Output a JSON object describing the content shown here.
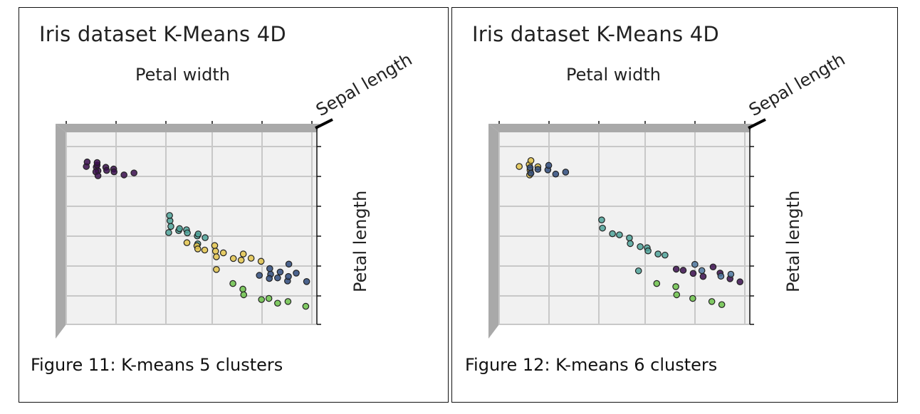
{
  "figures": [
    {
      "caption": "Figure 11: K-means 5 clusters",
      "chart_data": {
        "type": "scatter",
        "title": "Iris dataset K-Means 4D",
        "xlabel": "Petal width",
        "ylabel": "Petal length",
        "zlabel": "Sepal length",
        "xlim": [
          0.1,
          2.5
        ],
        "ylim": [
          1.0,
          6.9
        ],
        "grid": true,
        "series": [
          {
            "color": "#3b0f4f",
            "x": [
              0.1,
              0.2,
              0.2,
              0.2,
              0.2,
              0.3,
              0.3,
              0.4,
              0.1,
              0.2,
              0.2,
              0.4,
              0.5,
              0.6
            ],
            "y": [
              1.4,
              1.4,
              1.3,
              1.5,
              1.6,
              1.4,
              1.5,
              1.5,
              1.2,
              1.2,
              1.7,
              1.6,
              1.7,
              1.6
            ]
          },
          {
            "color": "#4fa39a",
            "x": [
              1.0,
              1.0,
              1.0,
              1.1,
              1.1,
              1.2,
              1.2,
              1.3,
              1.3,
              1.4,
              1.0,
              1.3
            ],
            "y": [
              3.5,
              3.7,
              4.0,
              3.9,
              3.8,
              3.9,
              4.0,
              4.1,
              4.0,
              4.2,
              3.3,
              4.4
            ]
          },
          {
            "color": "#e3c44c",
            "x": [
              1.2,
              1.3,
              1.3,
              1.4,
              1.5,
              1.5,
              1.5,
              1.6,
              1.7,
              1.8,
              1.8,
              1.9,
              2.0,
              1.5
            ],
            "y": [
              4.4,
              4.5,
              4.6,
              4.7,
              4.5,
              4.7,
              4.9,
              4.8,
              5.0,
              4.8,
              5.1,
              5.0,
              5.1,
              5.4
            ]
          },
          {
            "color": "#2f4b7c",
            "x": [
              2.1,
              2.2,
              2.3,
              2.3,
              2.2,
              2.4,
              2.1,
              2.3,
              2.0,
              2.1,
              2.5
            ],
            "y": [
              5.6,
              5.8,
              5.9,
              5.7,
              5.5,
              5.6,
              5.4,
              5.2,
              5.7,
              5.8,
              5.9
            ]
          },
          {
            "color": "#6cc24a",
            "x": [
              1.7,
              1.8,
              1.8,
              2.1,
              2.3,
              2.0,
              2.2,
              2.5
            ],
            "y": [
              6.0,
              6.2,
              6.4,
              6.6,
              6.7,
              6.6,
              6.8,
              6.9
            ]
          }
        ]
      }
    },
    {
      "caption": "Figure 12: K-means 6 clusters",
      "chart_data": {
        "type": "scatter",
        "title": "Iris dataset K-Means 4D",
        "xlabel": "Petal width",
        "ylabel": "Petal length",
        "zlabel": "Sepal length",
        "xlim": [
          0.1,
          2.5
        ],
        "ylim": [
          1.0,
          6.9
        ],
        "grid": true,
        "series": [
          {
            "color": "#e3c44c",
            "x": [
              0.1,
              0.2,
              0.2,
              0.2,
              0.3,
              0.2
            ],
            "y": [
              1.4,
              1.3,
              1.5,
              1.1,
              1.4,
              1.7
            ]
          },
          {
            "color": "#2f4b7c",
            "x": [
              0.2,
              0.2,
              0.3,
              0.4,
              0.4,
              0.5,
              0.6
            ],
            "y": [
              1.4,
              1.6,
              1.5,
              1.5,
              1.3,
              1.7,
              1.6
            ]
          },
          {
            "color": "#4fa39a",
            "x": [
              1.0,
              1.0,
              1.1,
              1.2,
              1.3,
              1.3,
              1.4,
              1.5,
              1.5,
              1.6,
              1.7,
              1.4
            ],
            "y": [
              3.5,
              3.8,
              4.0,
              4.1,
              4.2,
              4.4,
              4.5,
              4.6,
              4.7,
              4.8,
              4.9,
              5.5
            ]
          },
          {
            "color": "#3b0f4f",
            "x": [
              1.8,
              1.9,
              2.0,
              2.1,
              2.2,
              2.3,
              2.4,
              2.5
            ],
            "y": [
              5.4,
              5.5,
              5.6,
              5.7,
              5.3,
              5.6,
              5.8,
              5.9
            ]
          },
          {
            "color": "#6cc24a",
            "x": [
              1.6,
              1.8,
              1.8,
              2.0,
              2.2,
              2.3
            ],
            "y": [
              6.0,
              6.1,
              6.4,
              6.6,
              6.7,
              6.8
            ]
          },
          {
            "color": "#4f78a0",
            "x": [
              2.0,
              2.1,
              2.3,
              2.4
            ],
            "y": [
              5.2,
              5.5,
              5.7,
              5.6
            ]
          }
        ]
      }
    }
  ]
}
